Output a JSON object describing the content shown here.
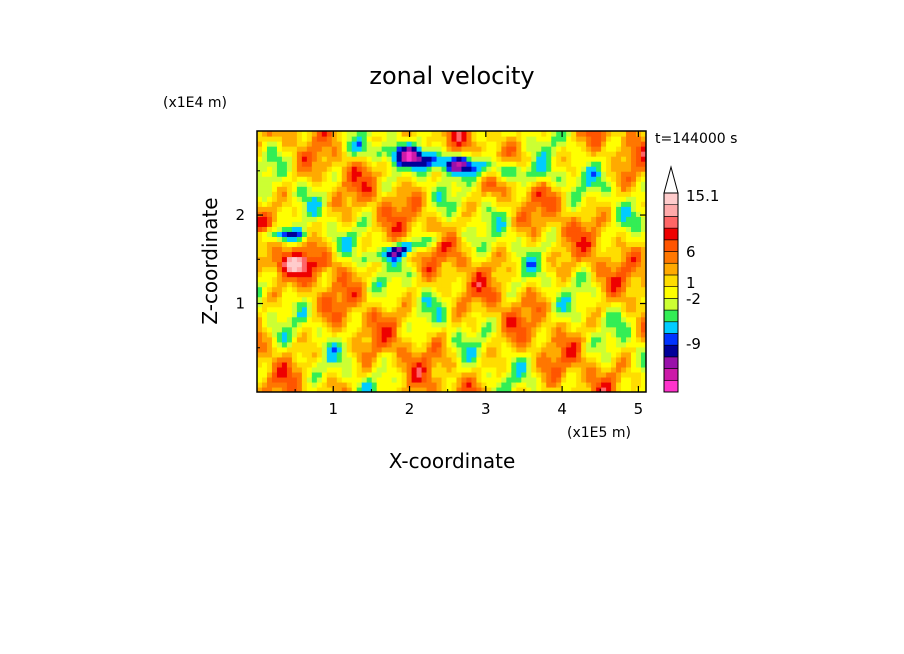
{
  "chart_data": {
    "type": "heatmap",
    "title": "zonal velocity",
    "xlabel": "X-coordinate",
    "ylabel": "Z-coordinate",
    "x_scale_label": "(x1E5 m)",
    "y_scale_label": "(x1E4 m)",
    "time_label": "t=144000 s",
    "xlim": [
      0.0,
      5.1
    ],
    "ylim": [
      0.0,
      2.95
    ],
    "x_ticks": [
      1,
      2,
      3,
      4,
      5
    ],
    "y_ticks": [
      1,
      2
    ],
    "colorbar": {
      "labeled_levels": [
        "15.1",
        "6",
        "1",
        "-2",
        "-9"
      ],
      "extend": "max",
      "colors": [
        "#ff33cc",
        "#cc1aa8",
        "#9911aa",
        "#000099",
        "#0033ff",
        "#00ccff",
        "#33ee55",
        "#ccff33",
        "#ffff00",
        "#ffdd00",
        "#ffaa00",
        "#ff7700",
        "#ff5500",
        "#ee0000",
        "#ff6666",
        "#ffaaaa",
        "#ffcccc"
      ]
    }
  }
}
